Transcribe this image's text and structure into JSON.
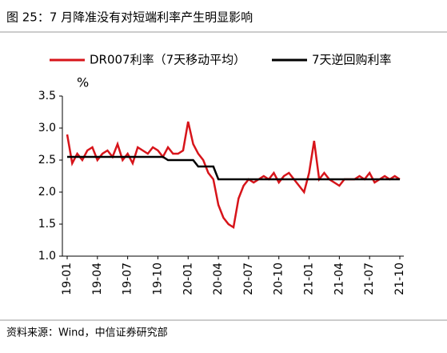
{
  "chart_data": {
    "type": "line",
    "title": "图 25：7 月降准没有对短端利率产生明显影响",
    "source": "资料来源：Wind，中信证券研究部",
    "y_label": "%",
    "categories": [
      "19-01",
      null,
      null,
      null,
      null,
      null,
      "19-04",
      null,
      null,
      null,
      null,
      null,
      "19-07",
      null,
      null,
      null,
      null,
      null,
      "19-10",
      null,
      null,
      null,
      null,
      null,
      "20-01",
      null,
      null,
      null,
      null,
      null,
      "20-04",
      null,
      null,
      null,
      null,
      null,
      "20-07",
      null,
      null,
      null,
      null,
      null,
      "20-10",
      null,
      null,
      null,
      null,
      null,
      "21-01",
      null,
      null,
      null,
      null,
      null,
      "21-04",
      null,
      null,
      null,
      null,
      null,
      "21-07",
      null,
      null,
      null,
      null,
      null,
      "21-10"
    ],
    "series": [
      {
        "name": "DR007利率（7天移动平均）",
        "color": "#d7141a",
        "values": [
          2.9,
          2.45,
          2.6,
          2.5,
          2.65,
          2.7,
          2.5,
          2.6,
          2.65,
          2.55,
          2.75,
          2.5,
          2.6,
          2.45,
          2.7,
          2.65,
          2.6,
          2.7,
          2.65,
          2.55,
          2.7,
          2.6,
          2.6,
          2.65,
          3.1,
          2.75,
          2.6,
          2.5,
          2.3,
          2.2,
          1.8,
          1.6,
          1.5,
          1.45,
          1.9,
          2.1,
          2.2,
          2.15,
          2.2,
          2.25,
          2.2,
          2.3,
          2.15,
          2.25,
          2.3,
          2.2,
          2.1,
          2.0,
          2.3,
          2.8,
          2.2,
          2.3,
          2.2,
          2.15,
          2.1,
          2.2,
          2.2,
          2.2,
          2.25,
          2.2,
          2.3,
          2.15,
          2.2,
          2.25,
          2.2,
          2.25,
          2.2
        ]
      },
      {
        "name": "7天逆回购利率",
        "color": "#000000",
        "values": [
          2.55,
          2.55,
          2.55,
          2.55,
          2.55,
          2.55,
          2.55,
          2.55,
          2.55,
          2.55,
          2.55,
          2.55,
          2.55,
          2.55,
          2.55,
          2.55,
          2.55,
          2.55,
          2.55,
          2.55,
          2.5,
          2.5,
          2.5,
          2.5,
          2.5,
          2.5,
          2.4,
          2.4,
          2.4,
          2.4,
          2.2,
          2.2,
          2.2,
          2.2,
          2.2,
          2.2,
          2.2,
          2.2,
          2.2,
          2.2,
          2.2,
          2.2,
          2.2,
          2.2,
          2.2,
          2.2,
          2.2,
          2.2,
          2.2,
          2.2,
          2.2,
          2.2,
          2.2,
          2.2,
          2.2,
          2.2,
          2.2,
          2.2,
          2.2,
          2.2,
          2.2,
          2.2,
          2.2,
          2.2,
          2.2,
          2.2,
          2.2
        ]
      }
    ],
    "ylim": [
      1.0,
      3.5
    ],
    "yticks": [
      {
        "value": 1.0,
        "label": "1.0"
      },
      {
        "value": 1.5,
        "label": "1.5"
      },
      {
        "value": 2.0,
        "label": "2.0"
      },
      {
        "value": 2.5,
        "label": "2.5"
      },
      {
        "value": 3.0,
        "label": "3.0"
      },
      {
        "value": 3.5,
        "label": "3.5"
      }
    ]
  }
}
